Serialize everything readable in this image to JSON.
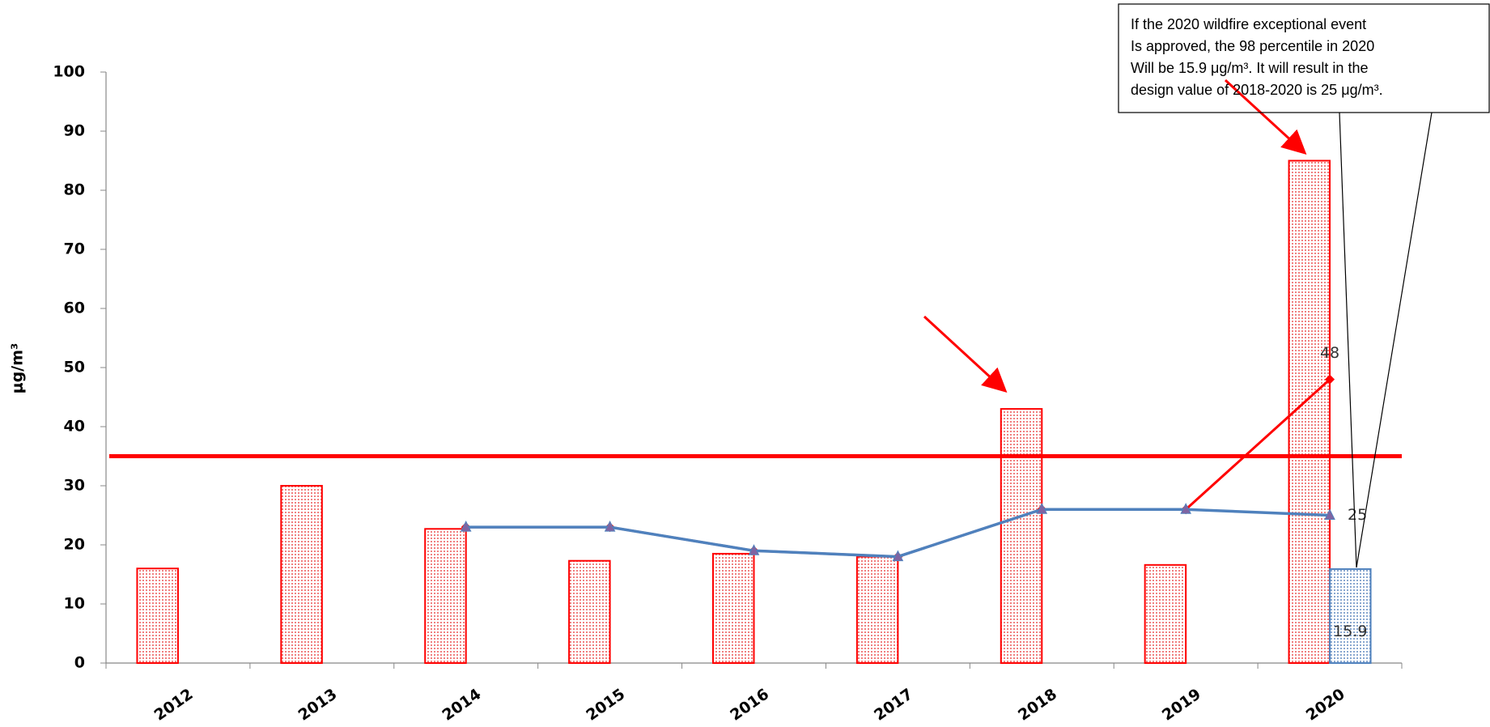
{
  "chart_data": {
    "type": "bar-line",
    "y_label": "μg/m³",
    "categories": [
      "2012",
      "2013",
      "2014",
      "2015",
      "2016",
      "2017",
      "2018",
      "2019",
      "2020"
    ],
    "ylim": [
      0,
      100
    ],
    "yticks": [
      0,
      10,
      20,
      30,
      40,
      50,
      60,
      70,
      80,
      90,
      100
    ],
    "bar_series": [
      {
        "color": "#ff0000",
        "values": [
          16,
          30,
          22.7,
          17.3,
          18.5,
          18,
          43,
          16.6,
          85
        ]
      },
      {
        "color": "#4f81bd",
        "values": [
          null,
          null,
          null,
          null,
          null,
          null,
          null,
          null,
          15.9
        ],
        "data_labels": "last",
        "label_position": "inside"
      }
    ],
    "line_series": [
      {
        "color": "#ff0000",
        "marker": "diamond",
        "values": [
          null,
          null,
          23,
          23,
          19,
          18,
          26,
          26,
          48
        ],
        "data_labels": "last",
        "label_position": "above"
      },
      {
        "color": "#4f81bd",
        "marker": "triangle",
        "values": [
          null,
          null,
          23,
          23,
          19,
          18,
          26,
          26,
          25
        ],
        "data_labels": "last",
        "label_position": "right"
      }
    ],
    "reference_line": {
      "value": 35,
      "color": "#ff0000"
    },
    "annotation": [
      "If the 2020 wildfire exceptional event",
      "Is approved, the 98 percentile in 2020",
      "Will be 15.9 μg/m³.  It will result in the",
      "design value of 2018-2020 is 25 μg/m³."
    ]
  }
}
